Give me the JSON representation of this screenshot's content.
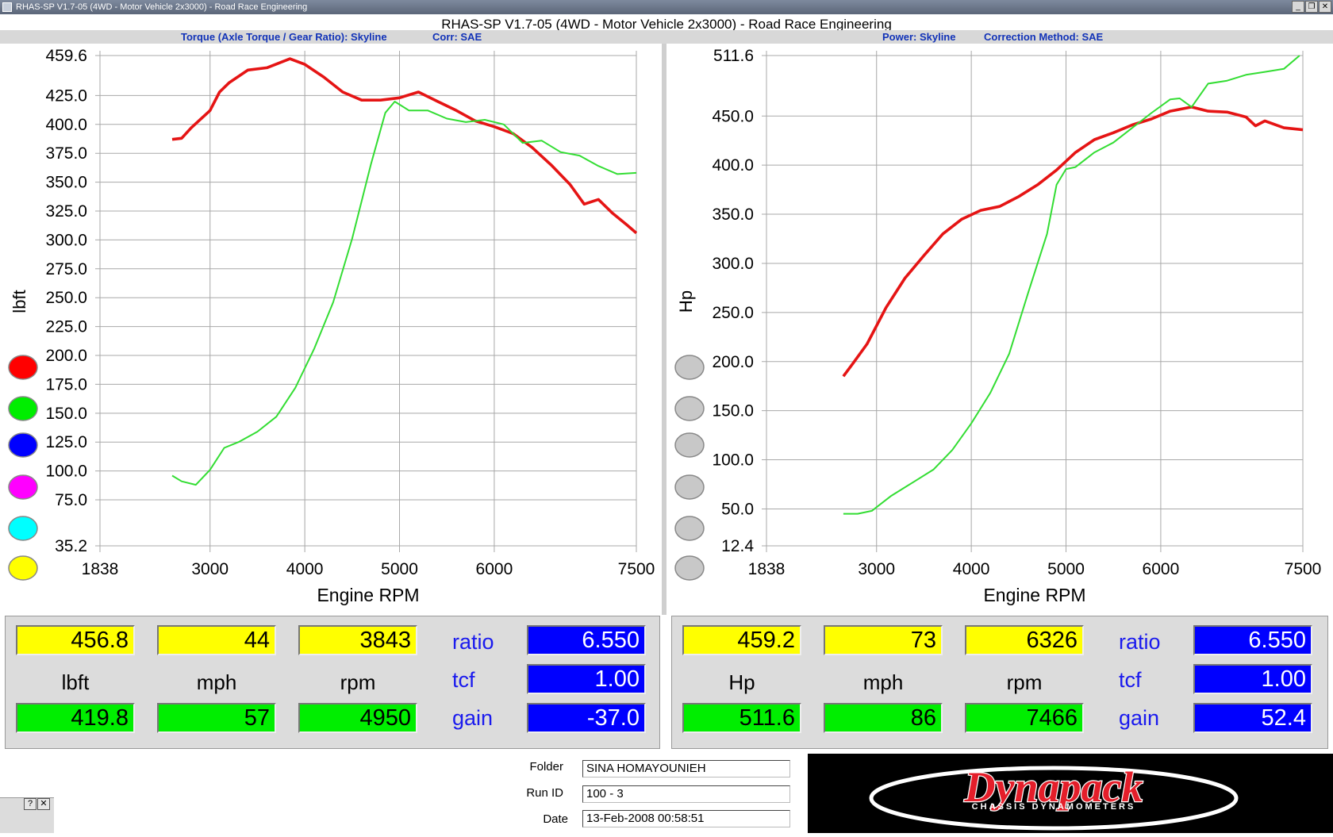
{
  "window": {
    "title": "RHAS-SP V1.7-05   (4WD - Motor Vehicle 2x3000) - Road Race Engineering"
  },
  "header": {
    "title": "RHAS-SP V1.7-05   (4WD - Motor Vehicle 2x3000) - Road Race Engineering",
    "left_sub": "Torque (Axle Torque / Gear Ratio): Skyline",
    "left_corr": "Corr: SAE",
    "right_sub": "Power: Skyline",
    "right_corr": "Correction Method: SAE"
  },
  "colors": {
    "red": "#e51414",
    "green": "#33dd33",
    "grid": "#a8a8a8"
  },
  "swatches_left": [
    "#ff0000",
    "#00ee00",
    "#0000ff",
    "#ff00ff",
    "#00ffff",
    "#ffff00"
  ],
  "swatches_right": [
    "#c8c8c8",
    "#c8c8c8",
    "#c8c8c8",
    "#c8c8c8",
    "#c8c8c8",
    "#c8c8c8"
  ],
  "chart_data": [
    {
      "type": "line",
      "xlabel": "Engine RPM",
      "ylabel": "lbft",
      "xlim": [
        1838,
        7500
      ],
      "ylim": [
        35.2,
        459.6
      ],
      "x_ticks": [
        1838,
        3000,
        4000,
        5000,
        6000,
        7500
      ],
      "y_ticks": [
        459.6,
        425.0,
        400.0,
        375.0,
        350.0,
        325.0,
        300.0,
        275.0,
        250.0,
        225.0,
        200.0,
        175.0,
        150.0,
        125.0,
        100.0,
        75.0,
        35.2
      ],
      "grid": true,
      "series": [
        {
          "color": "red",
          "points": [
            [
              2600,
              387
            ],
            [
              2700,
              388
            ],
            [
              2800,
              397
            ],
            [
              3000,
              412
            ],
            [
              3100,
              428
            ],
            [
              3200,
              436
            ],
            [
              3400,
              447
            ],
            [
              3600,
              449
            ],
            [
              3843,
              456.8
            ],
            [
              4000,
              452
            ],
            [
              4200,
              441
            ],
            [
              4400,
              428
            ],
            [
              4600,
              421
            ],
            [
              4800,
              421
            ],
            [
              5000,
              423
            ],
            [
              5200,
              428
            ],
            [
              5400,
              420
            ],
            [
              5600,
              412
            ],
            [
              5800,
              403
            ],
            [
              6000,
              398
            ],
            [
              6200,
              392
            ],
            [
              6400,
              380
            ],
            [
              6600,
              365
            ],
            [
              6800,
              348
            ],
            [
              6950,
              331
            ],
            [
              7100,
              335
            ],
            [
              7250,
              323
            ],
            [
              7400,
              313
            ],
            [
              7500,
              306
            ]
          ]
        },
        {
          "color": "green",
          "points": [
            [
              2600,
              96
            ],
            [
              2700,
              91
            ],
            [
              2850,
              88
            ],
            [
              3000,
              101
            ],
            [
              3150,
              120
            ],
            [
              3300,
              125
            ],
            [
              3500,
              134
            ],
            [
              3700,
              147
            ],
            [
              3900,
              172
            ],
            [
              4100,
              206
            ],
            [
              4300,
              246
            ],
            [
              4500,
              301
            ],
            [
              4700,
              366
            ],
            [
              4850,
              410
            ],
            [
              4950,
              419.8
            ],
            [
              5100,
              412
            ],
            [
              5300,
              412
            ],
            [
              5500,
              405
            ],
            [
              5700,
              402
            ],
            [
              5900,
              404
            ],
            [
              6100,
              400
            ],
            [
              6300,
              384
            ],
            [
              6500,
              386
            ],
            [
              6700,
              376
            ],
            [
              6900,
              373
            ],
            [
              7100,
              364
            ],
            [
              7300,
              357
            ],
            [
              7500,
              358
            ]
          ]
        }
      ]
    },
    {
      "type": "line",
      "xlabel": "Engine RPM",
      "ylabel": "Hp",
      "xlim": [
        1838,
        7500
      ],
      "ylim": [
        12.4,
        511.6
      ],
      "x_ticks": [
        1838,
        3000,
        4000,
        5000,
        6000,
        7500
      ],
      "y_ticks": [
        511.6,
        450.0,
        400.0,
        350.0,
        300.0,
        250.0,
        200.0,
        150.0,
        100.0,
        50.0,
        12.4
      ],
      "grid": true,
      "series": [
        {
          "color": "red",
          "points": [
            [
              2650,
              185
            ],
            [
              2750,
              198
            ],
            [
              2900,
              218
            ],
            [
              3100,
              255
            ],
            [
              3300,
              285
            ],
            [
              3500,
              308
            ],
            [
              3700,
              330
            ],
            [
              3900,
              345
            ],
            [
              4100,
              354
            ],
            [
              4300,
              358
            ],
            [
              4500,
              368
            ],
            [
              4700,
              380
            ],
            [
              4900,
              395
            ],
            [
              5100,
              413
            ],
            [
              5300,
              426
            ],
            [
              5500,
              433
            ],
            [
              5700,
              441
            ],
            [
              5900,
              447
            ],
            [
              6100,
              455
            ],
            [
              6326,
              459.2
            ],
            [
              6500,
              455
            ],
            [
              6700,
              454
            ],
            [
              6900,
              449
            ],
            [
              7000,
              440
            ],
            [
              7100,
              445
            ],
            [
              7300,
              438
            ],
            [
              7500,
              436
            ]
          ]
        },
        {
          "color": "green",
          "points": [
            [
              2650,
              45
            ],
            [
              2800,
              45
            ],
            [
              2950,
              48
            ],
            [
              3150,
              63
            ],
            [
              3400,
              78
            ],
            [
              3600,
              90
            ],
            [
              3800,
              110
            ],
            [
              4000,
              137
            ],
            [
              4200,
              168
            ],
            [
              4400,
              208
            ],
            [
              4600,
              270
            ],
            [
              4800,
              330
            ],
            [
              4900,
              380
            ],
            [
              5000,
              396
            ],
            [
              5100,
              398
            ],
            [
              5300,
              413
            ],
            [
              5500,
              423
            ],
            [
              5700,
              438
            ],
            [
              5900,
              453
            ],
            [
              6100,
              467
            ],
            [
              6200,
              468
            ],
            [
              6326,
              459.2
            ],
            [
              6500,
              483
            ],
            [
              6700,
              486
            ],
            [
              6900,
              492
            ],
            [
              7100,
              495
            ],
            [
              7300,
              498
            ],
            [
              7466,
              511.6
            ]
          ]
        }
      ]
    }
  ],
  "left_panel": {
    "peak": {
      "value": "456.8",
      "mph": "44",
      "rpm": "3843"
    },
    "other": {
      "value": "419.8",
      "mph": "57",
      "rpm": "4950"
    },
    "unit": "lbft",
    "mph_label": "mph",
    "rpm_label": "rpm",
    "ratio_label": "ratio",
    "tcf_label": "tcf",
    "gain_label": "gain",
    "ratio": "6.550",
    "tcf": "1.00",
    "gain": "-37.0"
  },
  "right_panel": {
    "peak": {
      "value": "459.2",
      "mph": "73",
      "rpm": "6326"
    },
    "other": {
      "value": "511.6",
      "mph": "86",
      "rpm": "7466"
    },
    "unit": "Hp",
    "mph_label": "mph",
    "rpm_label": "rpm",
    "ratio_label": "ratio",
    "tcf_label": "tcf",
    "gain_label": "gain",
    "ratio": "6.550",
    "tcf": "1.00",
    "gain": "52.4"
  },
  "info": {
    "folder_label": "Folder",
    "folder": "SINA HOMAYOUNIEH",
    "runid_label": "Run ID",
    "runid": "100 - 3",
    "date_label": "Date",
    "date": "13-Feb-2008  00:58:51"
  },
  "logo": {
    "brand": "Dynapack",
    "tagline": "CHASSIS DYNAMOMETERS"
  },
  "help": {
    "q": "?",
    "x": "✕"
  }
}
